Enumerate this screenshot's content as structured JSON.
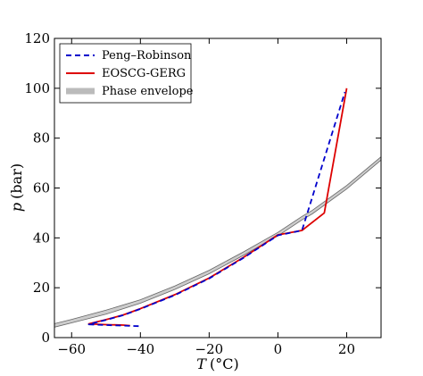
{
  "chart_data": {
    "type": "line",
    "xlabel_var": "T",
    "xlabel_unit": "(°C)",
    "ylabel_var": "p",
    "ylabel_unit": "(bar)",
    "xlim": [
      -65,
      30
    ],
    "ylim": [
      0,
      120
    ],
    "xticks": [
      -60,
      -40,
      -20,
      0,
      20
    ],
    "xtick_labels": [
      "−60",
      "−40",
      "−20",
      "0",
      "20"
    ],
    "yticks": [
      0,
      20,
      40,
      60,
      80,
      100,
      120
    ],
    "ytick_labels": [
      "0",
      "20",
      "40",
      "60",
      "80",
      "100",
      "120"
    ],
    "grid": false,
    "legend_position": "top-left",
    "colors": {
      "peng_robinson": "#0000cc",
      "eoscg_gerg": "#dd0000",
      "envelope": "#aaaaaa"
    },
    "envelope": {
      "name": "Phase envelope",
      "upper": {
        "x": [
          -65,
          -60,
          -50,
          -40,
          -30,
          -20,
          -10,
          0,
          7,
          10,
          20,
          30
        ],
        "y": [
          5.6,
          7.3,
          11.0,
          15.2,
          20.7,
          27.0,
          34.4,
          42.2,
          48.6,
          51.0,
          61.0,
          72.5
        ]
      },
      "lower": {
        "x": [
          -65,
          -60,
          -50,
          -40,
          -30,
          -20,
          -10,
          0,
          7,
          10,
          20,
          30
        ],
        "y": [
          4.2,
          5.9,
          9.4,
          13.8,
          19.3,
          25.6,
          33.0,
          40.8,
          47.2,
          49.6,
          59.6,
          71.2
        ]
      }
    },
    "series": [
      {
        "name": "Peng–Robinson",
        "style": "dashed",
        "x": [
          -40.5,
          -43,
          -45,
          -50,
          -55,
          -50,
          -45,
          -40,
          -30,
          -20,
          -10,
          0,
          7,
          19.5
        ],
        "y": [
          4.6,
          4.7,
          4.8,
          5.0,
          5.3,
          7.1,
          9.0,
          11.5,
          17.0,
          23.7,
          32.0,
          41.0,
          43.0,
          98.5
        ]
      },
      {
        "name": "EOSCG-GERG",
        "style": "solid",
        "x": [
          -43,
          -45,
          -50,
          -55,
          -50,
          -45,
          -40,
          -30,
          -20,
          -10,
          0,
          7,
          13.5,
          20
        ],
        "y": [
          4.8,
          5.0,
          5.2,
          5.5,
          7.2,
          9.1,
          11.6,
          17.2,
          23.9,
          32.2,
          41.2,
          43.0,
          50.0,
          100
        ]
      }
    ]
  }
}
